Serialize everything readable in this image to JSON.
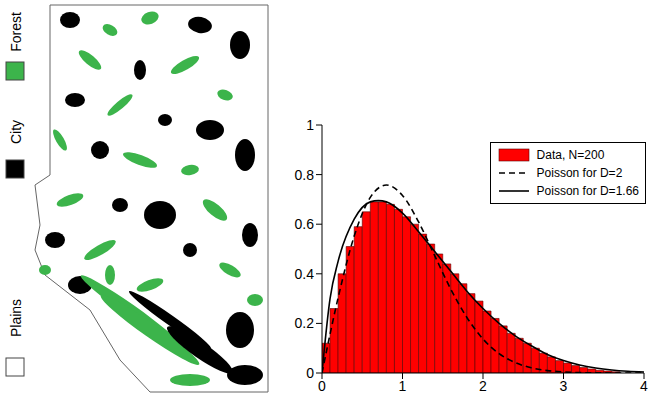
{
  "map": {
    "legend": [
      {
        "label": "Forest",
        "color": "#3cb44b"
      },
      {
        "label": "City",
        "color": "#000000"
      },
      {
        "label": "Plains",
        "color": "#ffffff"
      }
    ]
  },
  "chart_data": {
    "type": "histogram",
    "bins": [
      0,
      0.1,
      0.2,
      0.3,
      0.4,
      0.5,
      0.6,
      0.7,
      0.8,
      0.9,
      1.0,
      1.1,
      1.2,
      1.3,
      1.4,
      1.5,
      1.6,
      1.7,
      1.8,
      1.9,
      2.0,
      2.1,
      2.2,
      2.3,
      2.4,
      2.5,
      2.6,
      2.7,
      2.8,
      2.9,
      3.0,
      3.1,
      3.2,
      3.3,
      3.4,
      3.5,
      3.6,
      3.7
    ],
    "series": [
      {
        "name": "Data, N=200",
        "type": "bar",
        "color": "#ff0000",
        "values": [
          0.12,
          0.26,
          0.4,
          0.51,
          0.59,
          0.65,
          0.69,
          0.69,
          0.68,
          0.66,
          0.63,
          0.6,
          0.56,
          0.52,
          0.48,
          0.44,
          0.4,
          0.36,
          0.32,
          0.29,
          0.25,
          0.22,
          0.19,
          0.16,
          0.14,
          0.12,
          0.1,
          0.08,
          0.065,
          0.05,
          0.04,
          0.03,
          0.022,
          0.016,
          0.011,
          0.008,
          0.005
        ]
      },
      {
        "name": "Poisson for D=2",
        "type": "line",
        "line_style": "dashed",
        "color": "#000000",
        "x": [
          0,
          0.2,
          0.4,
          0.6,
          0.8,
          1.0,
          1.2,
          1.4,
          1.6,
          1.8,
          2.0,
          2.2,
          2.4,
          2.6,
          2.8,
          3.0,
          3.2,
          3.6,
          4.0
        ],
        "values": [
          0,
          0.303,
          0.552,
          0.708,
          0.758,
          0.716,
          0.609,
          0.473,
          0.338,
          0.224,
          0.137,
          0.078,
          0.042,
          0.021,
          0.0096,
          0.0042,
          0.0017,
          0.0002,
          0
        ]
      },
      {
        "name": "Poisson for D=1.66",
        "type": "line",
        "line_style": "solid",
        "color": "#000000",
        "x": [
          0,
          0.1,
          0.2,
          0.4,
          0.6,
          0.7,
          0.8,
          1.0,
          1.2,
          1.4,
          1.6,
          1.8,
          2.0,
          2.2,
          2.4,
          2.6,
          2.8,
          3.0,
          3.2,
          3.4,
          3.6,
          3.8,
          4.0
        ],
        "values": [
          0,
          0.3,
          0.45,
          0.62,
          0.69,
          0.695,
          0.69,
          0.645,
          0.57,
          0.49,
          0.41,
          0.33,
          0.26,
          0.2,
          0.15,
          0.11,
          0.075,
          0.05,
          0.032,
          0.02,
          0.012,
          0.007,
          0.004
        ]
      }
    ],
    "xlim": [
      0,
      4
    ],
    "xticks": [
      0,
      1,
      2,
      3,
      4
    ],
    "ylim": [
      0,
      1
    ],
    "yticks": [
      0,
      0.2,
      0.4,
      0.6,
      0.8,
      1
    ],
    "legend": "upper right"
  }
}
